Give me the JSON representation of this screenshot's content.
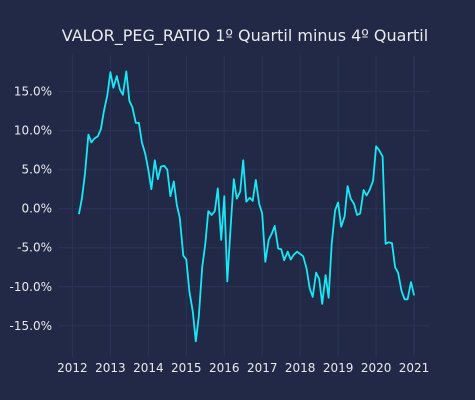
{
  "chart_data": {
    "type": "line",
    "title": "VALOR_PEG_RATIO 1º Quartil minus 4º Quartil",
    "xlabel": "",
    "ylabel": "",
    "x_ticks": [
      "2012",
      "2013",
      "2014",
      "2015",
      "2016",
      "2017",
      "2018",
      "2019",
      "2020",
      "2021"
    ],
    "y_ticks": [
      "-15.0%",
      "-10.0%",
      "-5.0%",
      "0.0%",
      "5.0%",
      "10.0%",
      "15.0%"
    ],
    "xlim": [
      2011.62,
      2021.42
    ],
    "ylim": [
      -19.0,
      19.7
    ],
    "grid": true,
    "series": [
      {
        "name": "",
        "color": "#16e8f5",
        "x": [
          2012.17,
          2012.25,
          2012.33,
          2012.42,
          2012.5,
          2012.58,
          2012.67,
          2012.75,
          2012.83,
          2012.92,
          2013.0,
          2013.08,
          2013.17,
          2013.25,
          2013.33,
          2013.42,
          2013.5,
          2013.58,
          2013.67,
          2013.75,
          2013.83,
          2013.92,
          2014.0,
          2014.08,
          2014.17,
          2014.25,
          2014.33,
          2014.42,
          2014.5,
          2014.58,
          2014.67,
          2014.75,
          2014.83,
          2014.92,
          2015.0,
          2015.08,
          2015.17,
          2015.25,
          2015.33,
          2015.42,
          2015.5,
          2015.58,
          2015.67,
          2015.75,
          2015.83,
          2015.92,
          2016.0,
          2016.08,
          2016.17,
          2016.25,
          2016.33,
          2016.42,
          2016.5,
          2016.58,
          2016.67,
          2016.75,
          2016.83,
          2016.92,
          2017.0,
          2017.08,
          2017.17,
          2017.25,
          2017.33,
          2017.42,
          2017.5,
          2017.58,
          2017.67,
          2017.75,
          2017.83,
          2017.92,
          2018.0,
          2018.08,
          2018.17,
          2018.25,
          2018.33,
          2018.42,
          2018.5,
          2018.58,
          2018.67,
          2018.75,
          2018.83,
          2018.92,
          2019.0,
          2019.08,
          2019.17,
          2019.25,
          2019.33,
          2019.42,
          2019.5,
          2019.58,
          2019.67,
          2019.75,
          2019.83,
          2019.92,
          2020.0,
          2020.08,
          2020.17,
          2020.25,
          2020.33,
          2020.42,
          2020.5,
          2020.58,
          2020.67,
          2020.75,
          2020.83,
          2020.92,
          2021.0
        ],
        "values": [
          -0.7,
          1.3,
          4.5,
          9.5,
          8.5,
          9.0,
          9.3,
          10.2,
          12.5,
          14.5,
          17.5,
          15.5,
          17.0,
          15.3,
          14.6,
          17.6,
          13.8,
          13.0,
          11.0,
          11.0,
          8.5,
          7.0,
          5.0,
          2.5,
          6.2,
          3.8,
          5.4,
          5.5,
          5.0,
          1.6,
          3.5,
          0.5,
          -1.2,
          -6.0,
          -6.5,
          -10.5,
          -13.2,
          -17.0,
          -13.8,
          -7.5,
          -4.5,
          -0.3,
          -0.8,
          -0.3,
          2.6,
          -4.0,
          1.6,
          -9.3,
          -2.2,
          3.8,
          1.3,
          2.2,
          6.2,
          0.9,
          1.4,
          1.0,
          3.7,
          0.6,
          -0.6,
          -6.8,
          -4.0,
          -3.2,
          -2.2,
          -5.1,
          -5.2,
          -6.6,
          -5.5,
          -6.5,
          -5.9,
          -5.5,
          -5.8,
          -6.1,
          -7.7,
          -10.2,
          -11.3,
          -8.2,
          -9.0,
          -12.2,
          -8.5,
          -11.4,
          -4.5,
          -0.2,
          0.8,
          -2.3,
          -1.0,
          2.9,
          1.3,
          0.6,
          -0.8,
          -0.6,
          2.4,
          1.7,
          2.4,
          3.6,
          8.0,
          7.5,
          6.7,
          -4.5,
          -4.3,
          -4.4,
          -7.5,
          -8.2,
          -10.5,
          -11.6,
          -11.6,
          -9.4,
          -11.1
        ]
      }
    ]
  }
}
